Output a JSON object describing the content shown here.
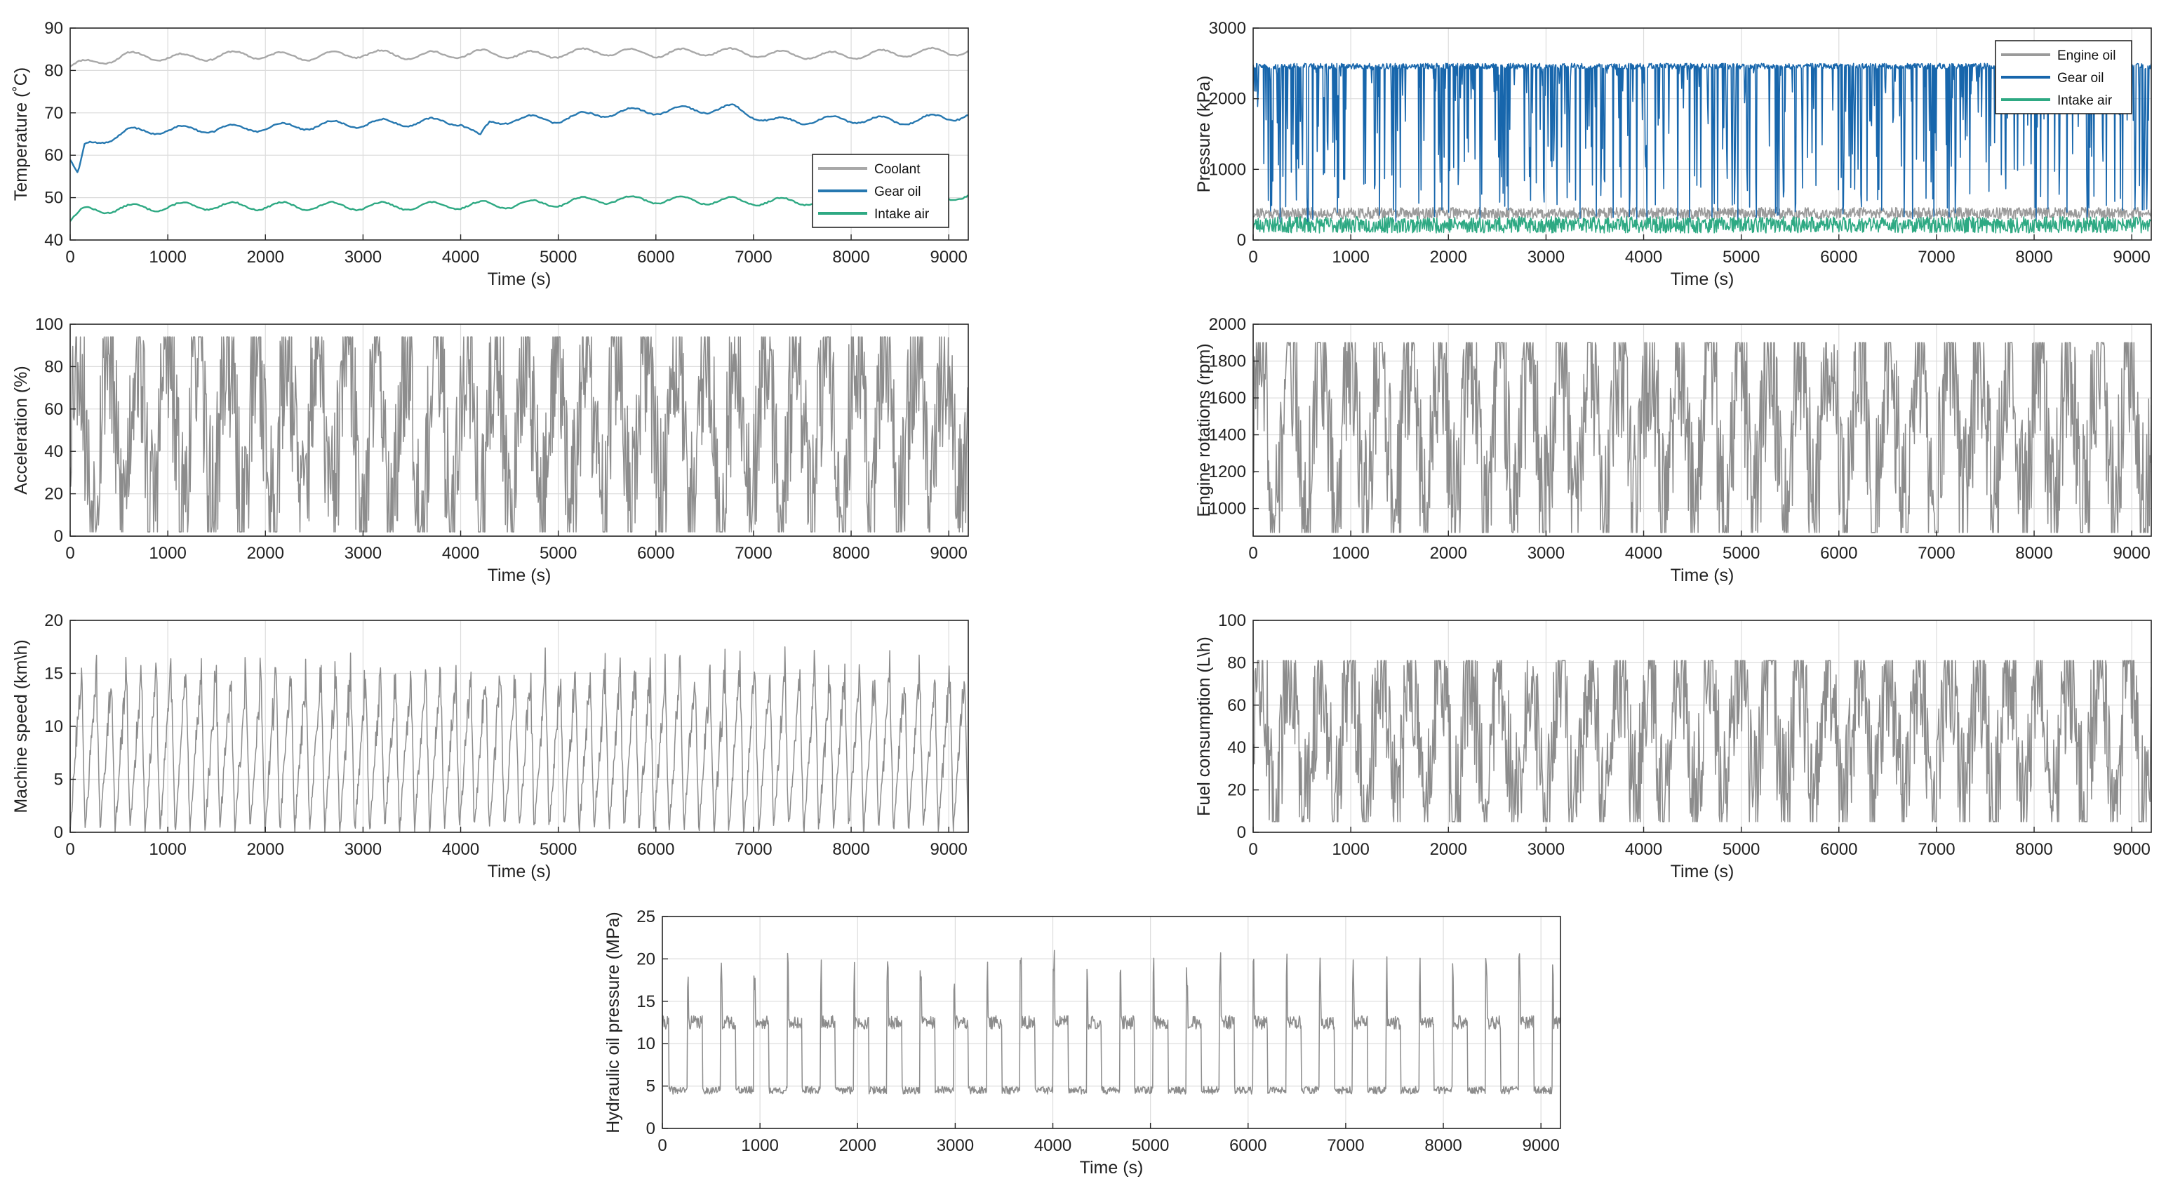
{
  "figure": {
    "panel_count": 7
  },
  "chart_data": [
    {
      "id": "temperature",
      "type": "line",
      "xlabel": "Time (s)",
      "ylabel": "Temperature (˚C)",
      "xlim": [
        0,
        9200
      ],
      "ylim": [
        40,
        90
      ],
      "xticks": [
        "0",
        "1000",
        "2000",
        "3000",
        "4000",
        "5000",
        "6000",
        "7000",
        "8000",
        "9000"
      ],
      "yticks": [
        "40",
        "50",
        "60",
        "70",
        "80",
        "90"
      ],
      "legend": {
        "position": "bottom-right",
        "entries": [
          "Coolant",
          "Gear oil",
          "Intake air"
        ]
      },
      "series": [
        {
          "name": "Coolant",
          "color": "#a8a8a8",
          "x": [
            0,
            600,
            1200,
            1800,
            2400,
            3000,
            3600,
            4200,
            4800,
            5400,
            6000,
            6600,
            7200,
            7800,
            8400,
            9000,
            9200
          ],
          "y": [
            81,
            83.5,
            83,
            83.8,
            83.2,
            84,
            83.5,
            84,
            83.6,
            84.5,
            84,
            84.5,
            83.8,
            83.5,
            84,
            84.5,
            84.5
          ]
        },
        {
          "name": "Gear oil",
          "color": "#2678b0",
          "x": [
            0,
            80,
            150,
            250,
            600,
            1000,
            2000,
            3000,
            4000,
            4200,
            4300,
            4500,
            5000,
            5500,
            6000,
            6800,
            7200,
            8000,
            8500,
            9000,
            9200
          ],
          "y": [
            59,
            55,
            62,
            63,
            65.5,
            66,
            66.5,
            67.5,
            68,
            64,
            67.5,
            68.5,
            68.5,
            70,
            70.5,
            71,
            68,
            68.5,
            68,
            69,
            69.5
          ]
        },
        {
          "name": "Intake air",
          "color": "#2ea983",
          "x": [
            0,
            150,
            600,
            1200,
            2400,
            3600,
            4800,
            5400,
            6000,
            7200,
            8400,
            9200
          ],
          "y": [
            44.5,
            47,
            47.5,
            48,
            48,
            48,
            48.5,
            49.5,
            49.5,
            49,
            49.5,
            50.5
          ]
        }
      ]
    },
    {
      "id": "pressure",
      "type": "line",
      "xlabel": "Time (s)",
      "ylabel": "Pressure (kPa)",
      "xlim": [
        0,
        9200
      ],
      "ylim": [
        0,
        3000
      ],
      "xticks": [
        "0",
        "1000",
        "2000",
        "3000",
        "4000",
        "5000",
        "6000",
        "7000",
        "8000",
        "9000"
      ],
      "yticks": [
        "0",
        "1000",
        "2000",
        "3000"
      ],
      "legend": {
        "position": "top-right",
        "entries": [
          "Engine oil",
          "Gear oil",
          "Intake air"
        ]
      },
      "series": [
        {
          "name": "Engine oil",
          "color": "#9a9a9a",
          "mean": 380,
          "min": 300,
          "max": 460
        },
        {
          "name": "Gear oil",
          "color": "#1766ac",
          "mean": 2350,
          "min": 250,
          "max": 2500
        },
        {
          "name": "Intake air",
          "color": "#2ea983",
          "mean": 220,
          "min": 100,
          "max": 330
        }
      ]
    },
    {
      "id": "acceleration",
      "type": "line",
      "xlabel": "Time (s)",
      "ylabel": "Acceleration (%)",
      "xlim": [
        0,
        9200
      ],
      "ylim": [
        0,
        100
      ],
      "xticks": [
        "0",
        "1000",
        "2000",
        "3000",
        "4000",
        "5000",
        "6000",
        "7000",
        "8000",
        "9000"
      ],
      "yticks": [
        "0",
        "20",
        "40",
        "60",
        "80",
        "100"
      ],
      "series": [
        {
          "name": "Acceleration",
          "color": "#8c8c8c",
          "cycles": 30,
          "min": 2,
          "max": 94
        }
      ]
    },
    {
      "id": "engine-rotations",
      "type": "line",
      "xlabel": "Time (s)",
      "ylabel": "Engine rotations (rpm)",
      "xlim": [
        0,
        9200
      ],
      "ylim": [
        850,
        2000
      ],
      "xticks": [
        "0",
        "1000",
        "2000",
        "3000",
        "4000",
        "5000",
        "6000",
        "7000",
        "8000",
        "9000"
      ],
      "yticks": [
        "1000",
        "1200",
        "1400",
        "1600",
        "1800",
        "2000"
      ],
      "series": [
        {
          "name": "Engine rotations",
          "color": "#8c8c8c",
          "cycles": 30,
          "min": 870,
          "max": 1900
        }
      ]
    },
    {
      "id": "machine-speed",
      "type": "line",
      "xlabel": "Time (s)",
      "ylabel": "Machine speed (km\\h)",
      "xlim": [
        0,
        9200
      ],
      "ylim": [
        0,
        20
      ],
      "xticks": [
        "0",
        "1000",
        "2000",
        "3000",
        "4000",
        "5000",
        "6000",
        "7000",
        "8000",
        "9000"
      ],
      "yticks": [
        "0",
        "5",
        "10",
        "15",
        "20"
      ],
      "series": [
        {
          "name": "Machine speed",
          "color": "#8c8c8c",
          "cycles": 60,
          "min": 0,
          "max": 17.5
        }
      ]
    },
    {
      "id": "fuel-consumption",
      "type": "line",
      "xlabel": "Time (s)",
      "ylabel": "Fuel  consumption (L\\h)",
      "xlim": [
        0,
        9200
      ],
      "ylim": [
        0,
        100
      ],
      "xticks": [
        "0",
        "1000",
        "2000",
        "3000",
        "4000",
        "5000",
        "6000",
        "7000",
        "8000",
        "9000"
      ],
      "yticks": [
        "0",
        "20",
        "40",
        "60",
        "80",
        "100"
      ],
      "series": [
        {
          "name": "Fuel consumption",
          "color": "#8c8c8c",
          "cycles": 30,
          "min": 5,
          "max": 81
        }
      ]
    },
    {
      "id": "hydraulic-pressure",
      "type": "line",
      "xlabel": "Time (s)",
      "ylabel": "Hydraulic oil pressure (MPa)",
      "xlim": [
        0,
        9200
      ],
      "ylim": [
        0,
        25
      ],
      "xticks": [
        "0",
        "1000",
        "2000",
        "3000",
        "4000",
        "5000",
        "6000",
        "7000",
        "8000",
        "9000"
      ],
      "yticks": [
        "0",
        "5",
        "10",
        "15",
        "20",
        "25"
      ],
      "series": [
        {
          "name": "Hydraulic oil pressure",
          "color": "#8c8c8c",
          "cycles": 27,
          "low": 4.5,
          "mid": 12.5,
          "peak": 20
        }
      ]
    }
  ]
}
